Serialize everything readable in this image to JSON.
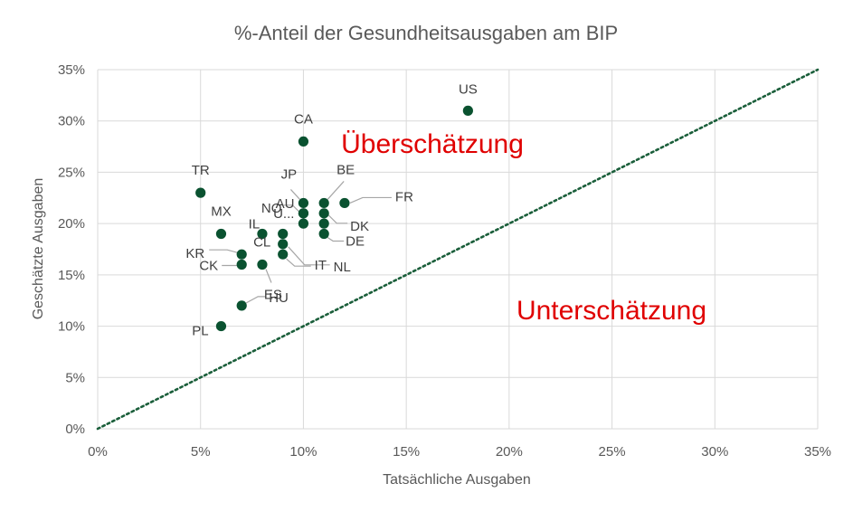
{
  "chart_data": {
    "type": "scatter",
    "title": "%-Anteil der Gesundheitsausgaben  am BIP",
    "xlabel": "Tatsächliche Ausgaben",
    "ylabel": "Geschätzte Ausgaben",
    "xlim": [
      0,
      35
    ],
    "ylim": [
      0,
      35
    ],
    "x_ticks": [
      "0%",
      "5%",
      "10%",
      "15%",
      "20%",
      "25%",
      "30%",
      "35%"
    ],
    "y_ticks": [
      "0%",
      "5%",
      "10%",
      "15%",
      "20%",
      "25%",
      "30%",
      "35%"
    ],
    "grid": true,
    "marker_color": "#0a5230",
    "diagonal": {
      "from": [
        0,
        0
      ],
      "to": [
        35,
        35
      ],
      "style": "dotted",
      "color": "#1a5e3a"
    },
    "annotations": [
      {
        "text": "Überschätzung",
        "color": "#e00000"
      },
      {
        "text": "Unterschätzung",
        "color": "#e00000"
      }
    ],
    "points": [
      {
        "label": "US",
        "x": 18,
        "y": 31
      },
      {
        "label": "CA",
        "x": 10,
        "y": 28
      },
      {
        "label": "TR",
        "x": 5,
        "y": 23
      },
      {
        "label": "FR",
        "x": 12,
        "y": 22
      },
      {
        "label": "BE",
        "x": 11,
        "y": 22
      },
      {
        "label": "JP",
        "x": 10,
        "y": 22
      },
      {
        "label": "AU",
        "x": 10,
        "y": 21
      },
      {
        "label": "NO",
        "x": 10,
        "y": 21
      },
      {
        "label": "U...",
        "x": 10,
        "y": 20
      },
      {
        "label": "DK",
        "x": 11,
        "y": 21
      },
      {
        "label": "",
        "x": 11,
        "y": 20
      },
      {
        "label": "DE",
        "x": 11,
        "y": 19
      },
      {
        "label": "MX",
        "x": 6,
        "y": 19
      },
      {
        "label": "IL",
        "x": 8,
        "y": 19
      },
      {
        "label": "CL",
        "x": 9,
        "y": 19
      },
      {
        "label": "NL",
        "x": 9,
        "y": 18
      },
      {
        "label": "IT",
        "x": 9,
        "y": 17
      },
      {
        "label": "ES",
        "x": 8,
        "y": 16
      },
      {
        "label": "KR",
        "x": 7,
        "y": 17
      },
      {
        "label": "CK",
        "x": 7,
        "y": 16
      },
      {
        "label": "HU",
        "x": 7,
        "y": 12
      },
      {
        "label": "PL",
        "x": 6,
        "y": 10
      }
    ]
  }
}
